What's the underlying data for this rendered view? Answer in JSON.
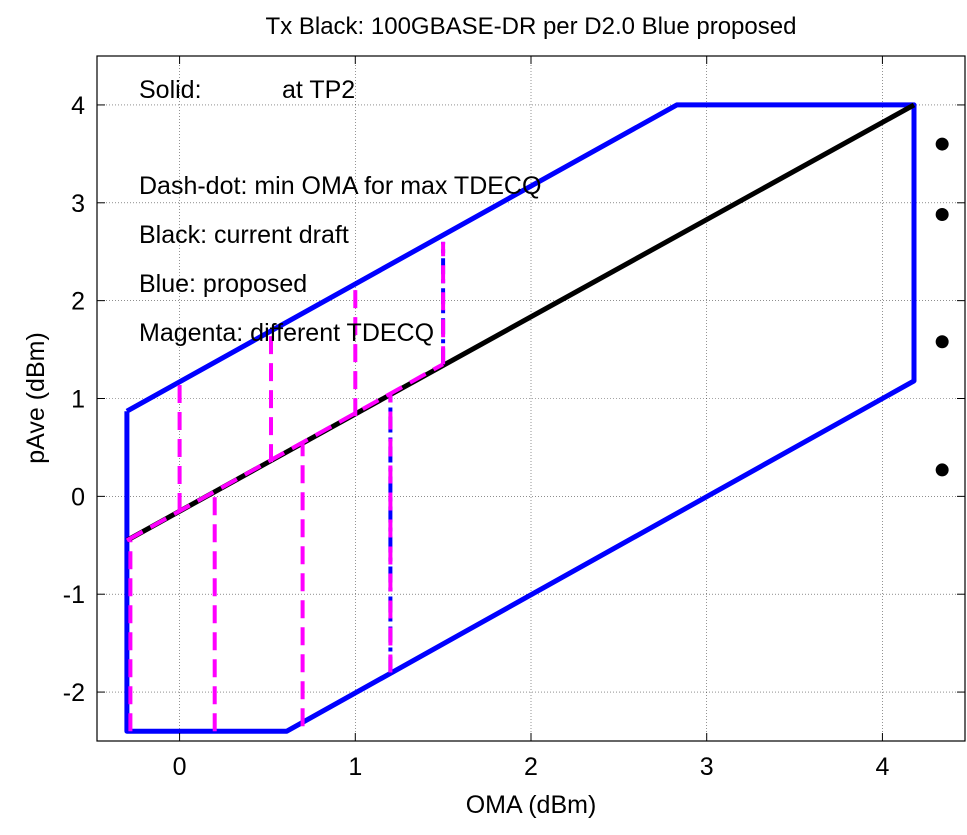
{
  "chart_data": {
    "type": "line",
    "title": "Tx  Black: 100GBASE-DR  per D2.0  Blue proposed",
    "xlabel": "OMA (dBm)",
    "ylabel": "pAve (dBm)",
    "xlim": [
      -0.47,
      4.47
    ],
    "ylim": [
      -2.5,
      4.5
    ],
    "xticks": [
      0,
      1,
      2,
      3,
      4
    ],
    "yticks": [
      -2,
      -1,
      0,
      1,
      2,
      3,
      4
    ],
    "xtick_labels": [
      "0",
      "1",
      "2",
      "3",
      "4"
    ],
    "ytick_labels": [
      "-2",
      "-1",
      "0",
      "1",
      "2",
      "3",
      "4"
    ],
    "grid": true,
    "colors": {
      "blue": "#0000ff",
      "black": "#000000",
      "magenta": "#ff00ff"
    },
    "annotations": [
      {
        "key": "solid-label",
        "label": "Solid:",
        "text": "at TP2"
      },
      {
        "key": "dash-dot",
        "text": "Dash-dot: min OMA for max TDECQ"
      },
      {
        "key": "black",
        "text": "Black: current draft"
      },
      {
        "key": "blue",
        "text": "Blue:  proposed"
      },
      {
        "key": "magenta",
        "text": "Magenta: different TDECQ"
      }
    ],
    "markers": [
      {
        "x": 4.34,
        "y": 3.6
      },
      {
        "x": 4.34,
        "y": 2.88
      },
      {
        "x": 4.34,
        "y": 1.58
      },
      {
        "x": 4.34,
        "y": 0.27
      }
    ],
    "series": [
      {
        "style": "solid",
        "color": "blue",
        "x": [
          -0.3,
          -0.3,
          0.61,
          4.18,
          4.18,
          2.83,
          -0.3
        ],
        "y": [
          0.87,
          -2.4,
          -2.4,
          1.18,
          4.0,
          4.0,
          0.87
        ]
      },
      {
        "style": "solid",
        "color": "black",
        "x": [
          -0.3,
          4.18
        ],
        "y": [
          -0.45,
          4.0
        ]
      },
      {
        "style": "dash-dot",
        "color": "blue",
        "x": [
          1.2,
          1.2
        ],
        "y": [
          -1.8,
          1.05
        ]
      },
      {
        "style": "dash-dot",
        "color": "blue",
        "x": [
          1.5,
          1.5
        ],
        "y": [
          1.35,
          2.6
        ]
      },
      {
        "style": "dashed",
        "color": "magenta",
        "segments": [
          {
            "x": [
              -0.28,
              -0.28
            ],
            "y": [
              -2.4,
              -0.45
            ]
          },
          {
            "x": [
              -0.3,
              1.5
            ],
            "y": [
              -0.45,
              1.35
            ]
          },
          {
            "x": [
              0,
              0
            ],
            "y": [
              -0.15,
              1.17
            ]
          },
          {
            "x": [
              0.2,
              0.2
            ],
            "y": [
              -2.4,
              0.05
            ]
          },
          {
            "x": [
              0.52,
              0.52
            ],
            "y": [
              0.35,
              1.66
            ]
          },
          {
            "x": [
              0.7,
              0.7
            ],
            "y": [
              -2.35,
              0.55
            ]
          },
          {
            "x": [
              1.0,
              1.0
            ],
            "y": [
              0.82,
              2.15
            ]
          },
          {
            "x": [
              1.2,
              1.2
            ],
            "y": [
              -1.8,
              1.05
            ]
          },
          {
            "x": [
              1.5,
              1.5
            ],
            "y": [
              1.35,
              2.6
            ]
          }
        ]
      }
    ]
  }
}
